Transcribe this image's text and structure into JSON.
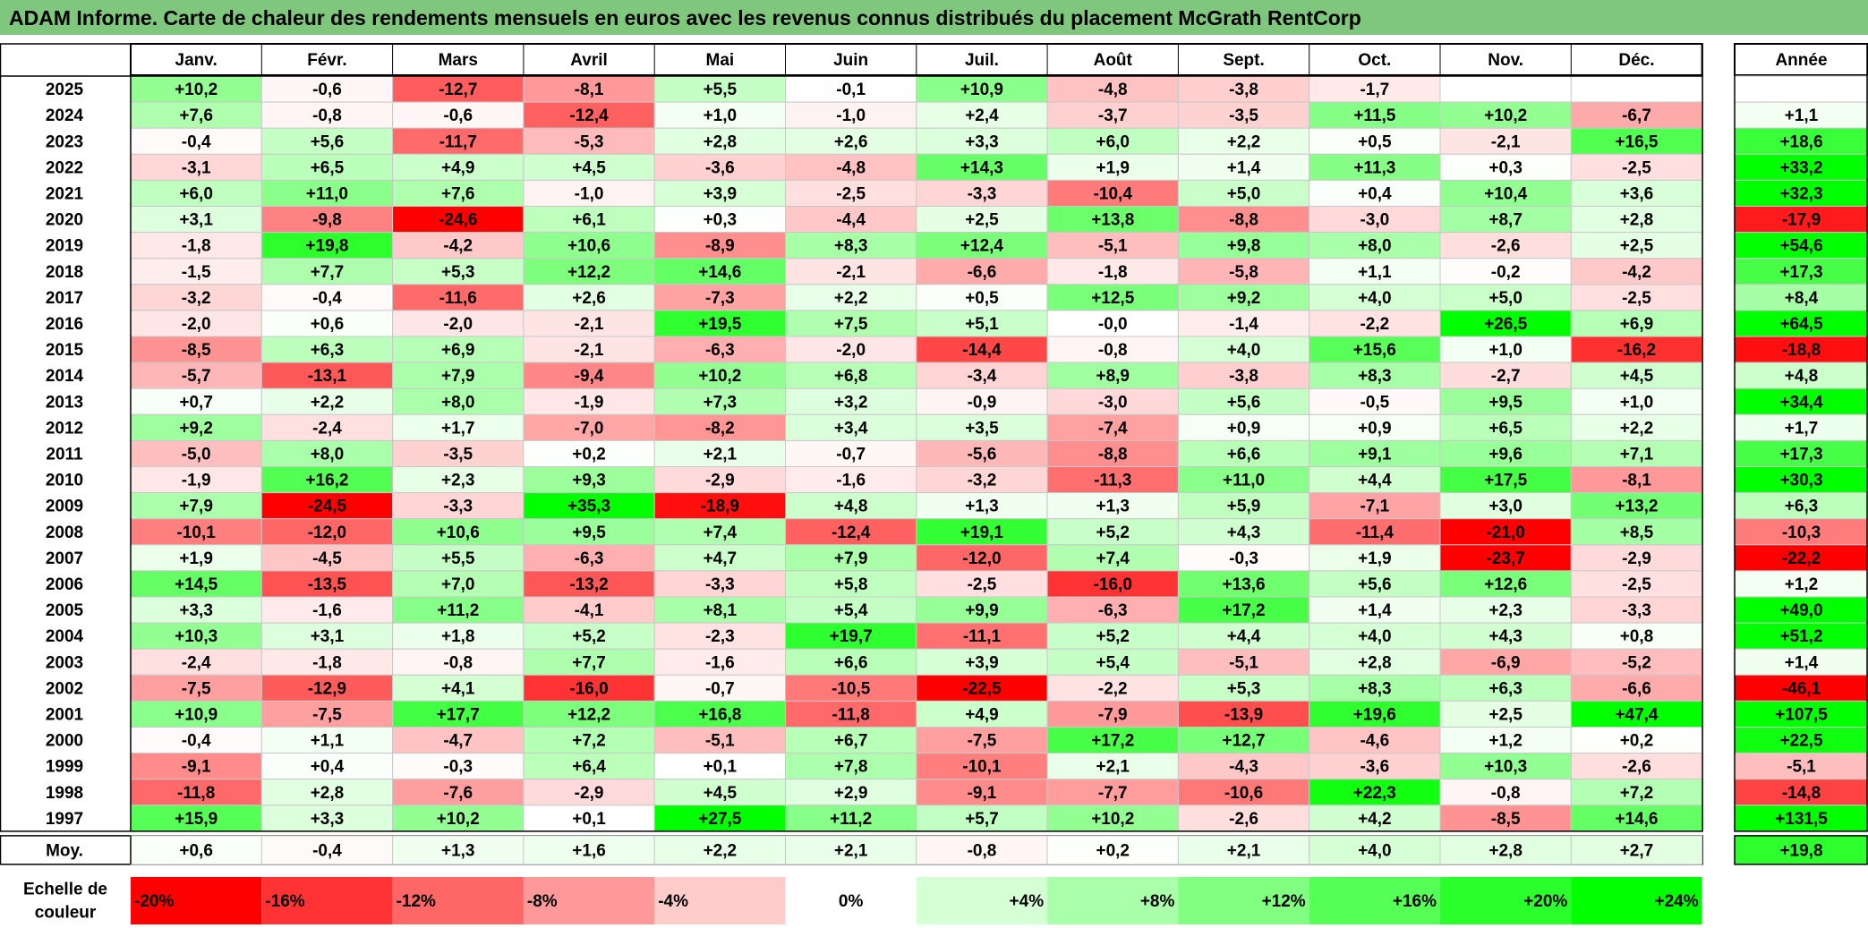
{
  "title": "ADAM Informe. Carte de chaleur des rendements mensuels en euros avec les revenus connus distribués du placement McGrath RentCorp",
  "chart_data": {
    "type": "heatmap",
    "title": "ADAM Informe. Carte de chaleur des rendements mensuels en euros avec les revenus connus distribués du placement McGrath RentCorp",
    "months": [
      "Janv.",
      "Févr.",
      "Mars",
      "Avril",
      "Mai",
      "Juin",
      "Juil.",
      "Août",
      "Sept.",
      "Oct.",
      "Nov.",
      "Déc."
    ],
    "year_header": "Année",
    "years": [
      "2025",
      "2024",
      "2023",
      "2022",
      "2021",
      "2020",
      "2019",
      "2018",
      "2017",
      "2016",
      "2015",
      "2014",
      "2013",
      "2012",
      "2011",
      "2010",
      "2009",
      "2008",
      "2007",
      "2006",
      "2005",
      "2004",
      "2003",
      "2002",
      "2001",
      "2000",
      "1999",
      "1998",
      "1997"
    ],
    "values": [
      [
        10.2,
        -0.6,
        -12.7,
        -8.1,
        5.5,
        -0.1,
        10.9,
        -4.8,
        -3.8,
        -1.7,
        null,
        null
      ],
      [
        7.6,
        -0.8,
        -0.6,
        -12.4,
        1.0,
        -1.0,
        2.4,
        -3.7,
        -3.5,
        11.5,
        10.2,
        -6.7
      ],
      [
        -0.4,
        5.6,
        -11.7,
        -5.3,
        2.8,
        2.6,
        3.3,
        6.0,
        2.2,
        0.5,
        -2.1,
        16.5
      ],
      [
        -3.1,
        6.5,
        4.9,
        4.5,
        -3.6,
        -4.8,
        14.3,
        1.9,
        1.4,
        11.3,
        0.3,
        -2.5
      ],
      [
        6.0,
        11.0,
        7.6,
        -1.0,
        3.9,
        -2.5,
        -3.3,
        -10.4,
        5.0,
        0.4,
        10.4,
        3.6
      ],
      [
        3.1,
        -9.8,
        -24.6,
        6.1,
        0.3,
        -4.4,
        2.5,
        13.8,
        -8.8,
        -3.0,
        8.7,
        2.8
      ],
      [
        -1.8,
        19.8,
        -4.2,
        10.6,
        -8.9,
        8.3,
        12.4,
        -5.1,
        9.8,
        8.0,
        -2.6,
        2.5
      ],
      [
        -1.5,
        7.7,
        5.3,
        12.2,
        14.6,
        -2.1,
        -6.6,
        -1.8,
        -5.8,
        1.1,
        -0.2,
        -4.2
      ],
      [
        -3.2,
        -0.4,
        -11.6,
        2.6,
        -7.3,
        2.2,
        0.5,
        12.5,
        9.2,
        4.0,
        5.0,
        -2.5
      ],
      [
        -2.0,
        0.6,
        -2.0,
        -2.1,
        19.5,
        7.5,
        5.1,
        "-0,0",
        -1.4,
        -2.2,
        26.5,
        6.9
      ],
      [
        -8.5,
        6.3,
        6.9,
        -2.1,
        -6.3,
        -2.0,
        -14.4,
        -0.8,
        4.0,
        15.6,
        1.0,
        -16.2
      ],
      [
        -5.7,
        -13.1,
        7.9,
        -9.4,
        10.2,
        6.8,
        -3.4,
        8.9,
        -3.8,
        8.3,
        -2.7,
        4.5
      ],
      [
        0.7,
        2.2,
        8.0,
        -1.9,
        7.3,
        3.2,
        -0.9,
        -3.0,
        5.6,
        -0.5,
        9.5,
        1.0
      ],
      [
        9.2,
        -2.4,
        1.7,
        -7.0,
        -8.2,
        3.4,
        3.5,
        -7.4,
        0.9,
        0.9,
        6.5,
        2.2
      ],
      [
        -5.0,
        8.0,
        -3.5,
        0.2,
        2.1,
        -0.7,
        -5.6,
        -8.8,
        6.6,
        9.1,
        9.6,
        7.1
      ],
      [
        -1.9,
        16.2,
        2.3,
        9.3,
        -2.9,
        -1.6,
        -3.2,
        -11.3,
        11.0,
        4.4,
        17.5,
        -8.1
      ],
      [
        7.9,
        -24.5,
        -3.3,
        35.3,
        -18.9,
        4.8,
        1.3,
        1.3,
        5.9,
        -7.1,
        3.0,
        13.2
      ],
      [
        -10.1,
        -12.0,
        10.6,
        9.5,
        7.4,
        -12.4,
        19.1,
        5.2,
        4.3,
        -11.4,
        -21.0,
        8.5
      ],
      [
        1.9,
        -4.5,
        5.5,
        -6.3,
        4.7,
        7.9,
        -12.0,
        7.4,
        -0.3,
        1.9,
        -23.7,
        -2.9
      ],
      [
        14.5,
        -13.5,
        7.0,
        -13.2,
        -3.3,
        5.8,
        -2.5,
        -16.0,
        13.6,
        5.6,
        12.6,
        -2.5
      ],
      [
        3.3,
        -1.6,
        11.2,
        -4.1,
        8.1,
        5.4,
        9.9,
        -6.3,
        17.2,
        1.4,
        2.3,
        -3.3
      ],
      [
        10.3,
        3.1,
        1.8,
        5.2,
        -2.3,
        19.7,
        -11.1,
        5.2,
        4.4,
        4.0,
        4.3,
        0.8
      ],
      [
        -2.4,
        -1.8,
        -0.8,
        7.7,
        -1.6,
        6.6,
        3.9,
        5.4,
        -5.1,
        2.8,
        -6.9,
        -5.2
      ],
      [
        -7.5,
        -12.9,
        4.1,
        -16.0,
        -0.7,
        -10.5,
        -22.5,
        -2.2,
        5.3,
        8.3,
        6.3,
        -6.6
      ],
      [
        10.9,
        -7.5,
        17.7,
        12.2,
        16.8,
        -11.8,
        4.9,
        -7.9,
        -13.9,
        19.6,
        2.5,
        47.4
      ],
      [
        -0.4,
        1.1,
        -4.7,
        7.2,
        -5.1,
        6.7,
        -7.5,
        17.2,
        12.7,
        -4.6,
        1.2,
        0.2
      ],
      [
        -9.1,
        0.4,
        -0.3,
        6.4,
        0.1,
        7.8,
        -10.1,
        2.1,
        -4.3,
        -3.6,
        10.3,
        -2.6
      ],
      [
        -11.8,
        2.8,
        -7.6,
        -2.9,
        4.5,
        2.9,
        -9.1,
        -7.7,
        -10.6,
        22.3,
        -0.8,
        7.2
      ],
      [
        15.9,
        3.3,
        10.2,
        0.1,
        27.5,
        11.2,
        5.7,
        10.2,
        -2.6,
        4.2,
        -8.5,
        14.6
      ]
    ],
    "annual": [
      null,
      1.1,
      18.6,
      33.2,
      32.3,
      -17.9,
      54.6,
      17.3,
      8.4,
      64.5,
      -18.8,
      4.8,
      34.4,
      1.7,
      17.3,
      30.3,
      6.3,
      -10.3,
      -22.2,
      1.2,
      49.0,
      51.2,
      1.4,
      -46.1,
      107.5,
      22.5,
      -5.1,
      -14.8,
      131.5
    ],
    "average_label": "Moy.",
    "average": [
      0.6,
      -0.4,
      1.3,
      1.6,
      2.2,
      2.1,
      -0.8,
      0.2,
      2.1,
      4.0,
      2.8,
      2.7
    ],
    "average_annual": 19.8,
    "scale_label": [
      "Echelle de",
      "couleur"
    ],
    "scale": [
      -20,
      -16,
      -12,
      -8,
      -4,
      0,
      4,
      8,
      12,
      16,
      20,
      24
    ],
    "colors": {
      "negative": "#ff0000",
      "neutral": "#ffffff",
      "positive": "#00ff00",
      "title_bg": "#7fc77c",
      "border": "#000000"
    }
  }
}
